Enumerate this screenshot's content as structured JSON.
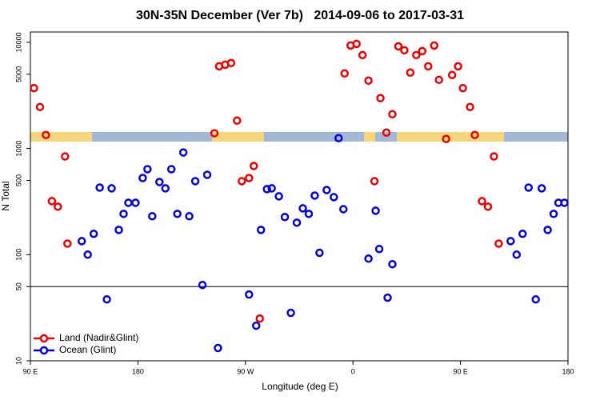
{
  "chart_data": {
    "type": "scatter",
    "title": "30N-35N December (Ver 7b)   2014-09-06 to 2017-03-31",
    "x_label": "Longitude (deg E)",
    "y_label": "N Total",
    "xlim": [
      90,
      540
    ],
    "xticks": [
      {
        "value": 90,
        "label": "90 E"
      },
      180,
      {
        "value": 270,
        "label": "90 W"
      },
      {
        "value": 360,
        "label": "0"
      },
      {
        "value": 450,
        "label": "90 E"
      },
      {
        "value": 540,
        "label": "180"
      }
    ],
    "ylim": [
      10,
      12500
    ],
    "yticks": [
      10,
      50,
      100,
      500,
      1000,
      5000,
      10000
    ],
    "log_y": true,
    "hline": 50,
    "legend": "lower left",
    "series": [
      {
        "name": "Land (Nadir&Glint)",
        "color": "#ee0000",
        "x": [
          93,
          98,
          103,
          108,
          113,
          119,
          121,
          244,
          248,
          253,
          258,
          263,
          267,
          273,
          277,
          282,
          353,
          358,
          363,
          368,
          373,
          378,
          383,
          388,
          393,
          398,
          403,
          408,
          413,
          418,
          423,
          428,
          432,
          438,
          443,
          448,
          452,
          458,
          462,
          468,
          473,
          478,
          482
        ],
        "values": [
          3700,
          2460,
          1340,
          319,
          283,
          841,
          127,
          1390,
          5940,
          6150,
          6380,
          1830,
          492,
          527,
          684,
          25,
          5090,
          9330,
          9660,
          7580,
          4360,
          492,
          2980,
          1410,
          2100,
          9170,
          8410,
          5180,
          7580,
          8260,
          5940,
          9330,
          4430,
          1230,
          4920,
          5940,
          3700,
          2460,
          1340,
          319,
          283,
          841,
          127
        ]
      },
      {
        "name": "Ocean (Glint)",
        "color": "#0000dd",
        "x": [
          348,
          133,
          138,
          143,
          148,
          154,
          158,
          164,
          168,
          172,
          178,
          184,
          188,
          192,
          198,
          203,
          208,
          213,
          218,
          223,
          228,
          234,
          238,
          247,
          273,
          279,
          283,
          288,
          292,
          298,
          303,
          308,
          313,
          318,
          323,
          328,
          332,
          338,
          344,
          352,
          373,
          379,
          382,
          389,
          393,
          492,
          497,
          502,
          507,
          513,
          518,
          523,
          528,
          532,
          537
        ],
        "values": [
          1250,
          134,
          100,
          157,
          428,
          37.9,
          421,
          171,
          242,
          308,
          308,
          527,
          638,
          230,
          483,
          421,
          638,
          242,
          917,
          230,
          492,
          51.8,
          565,
          13.2,
          42.1,
          21.4,
          171,
          414,
          421,
          354,
          226,
          28.3,
          200,
          273,
          242,
          360,
          104,
          406,
          348,
          268,
          91.7,
          259,
          113,
          39.3,
          81.3,
          134,
          100,
          157,
          428,
          37.9,
          421,
          171,
          242,
          308,
          308
        ]
      }
    ]
  }
}
